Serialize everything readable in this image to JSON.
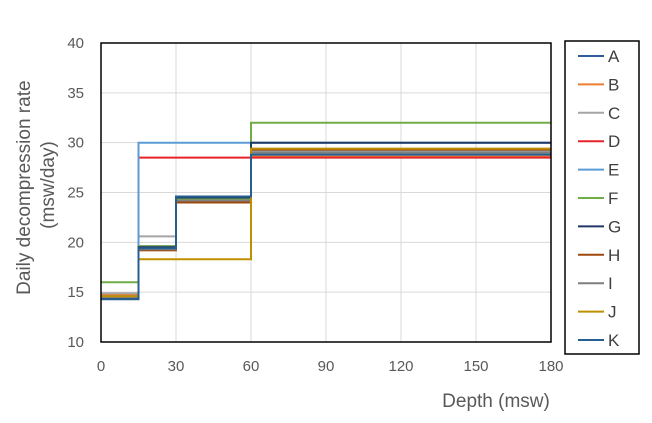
{
  "chart_data": {
    "type": "line",
    "step": true,
    "xlabel": "Depth (msw)",
    "ylabel_lines": [
      "Daily decompression rate",
      "(msw/day)"
    ],
    "xlim": [
      0,
      180
    ],
    "ylim": [
      10,
      40
    ],
    "xticks": [
      0,
      30,
      60,
      90,
      120,
      150,
      180
    ],
    "yticks": [
      10,
      15,
      20,
      25,
      30,
      35,
      40
    ],
    "grid": true,
    "legend_position": "right",
    "series": [
      {
        "name": "A",
        "color": "#2E5C9A",
        "x": [
          0,
          15,
          30,
          60,
          180
        ],
        "y": [
          14.4,
          19.6,
          24.6,
          29.0,
          29.0
        ]
      },
      {
        "name": "B",
        "color": "#ED7D31",
        "x": [
          0,
          15,
          30,
          60,
          180
        ],
        "y": [
          14.8,
          19.2,
          24.2,
          28.6,
          28.6
        ]
      },
      {
        "name": "C",
        "color": "#A5A5A5",
        "x": [
          0,
          15,
          30,
          60,
          180
        ],
        "y": [
          14.9,
          20.6,
          24.3,
          29.2,
          29.2
        ]
      },
      {
        "name": "D",
        "color": "#E8242B",
        "x": [
          0,
          15,
          30,
          60,
          180
        ],
        "y": [
          14.6,
          28.5,
          28.5,
          28.5,
          28.5
        ]
      },
      {
        "name": "E",
        "color": "#5B9BD5",
        "x": [
          0,
          15,
          30,
          60,
          180
        ],
        "y": [
          14.6,
          30.0,
          30.0,
          30.0,
          30.0
        ]
      },
      {
        "name": "F",
        "color": "#70AD47",
        "x": [
          0,
          15,
          30,
          60,
          180
        ],
        "y": [
          16.0,
          19.6,
          24.4,
          32.0,
          32.0
        ]
      },
      {
        "name": "G",
        "color": "#203864",
        "x": [
          0,
          15,
          30,
          60,
          180
        ],
        "y": [
          14.3,
          19.5,
          24.5,
          30.0,
          30.0
        ]
      },
      {
        "name": "H",
        "color": "#9E480E",
        "x": [
          0,
          15,
          30,
          60,
          180
        ],
        "y": [
          14.5,
          19.2,
          24.0,
          29.3,
          29.3
        ]
      },
      {
        "name": "I",
        "color": "#7F7F7F",
        "x": [
          0,
          15,
          30,
          60,
          180
        ],
        "y": [
          14.5,
          19.3,
          24.2,
          29.0,
          29.0
        ]
      },
      {
        "name": "J",
        "color": "#BF8F00",
        "x": [
          0,
          15,
          30,
          60,
          180
        ],
        "y": [
          14.6,
          18.3,
          18.3,
          29.4,
          29.4
        ]
      },
      {
        "name": "K",
        "color": "#255E91",
        "x": [
          0,
          15,
          30,
          60,
          180
        ],
        "y": [
          14.3,
          19.4,
          24.6,
          28.8,
          28.8
        ]
      }
    ]
  }
}
